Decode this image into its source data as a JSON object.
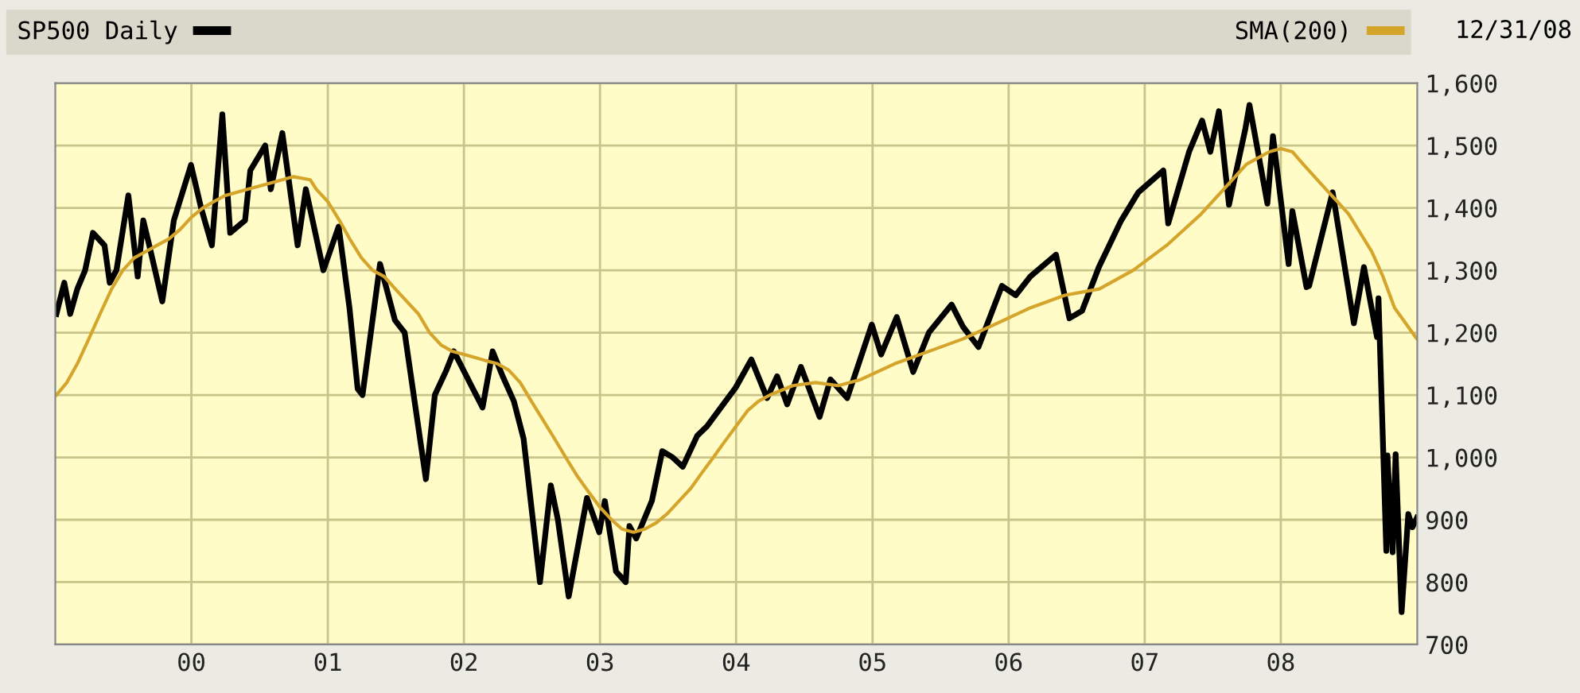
{
  "chart_data": {
    "type": "line",
    "annotations": [
      "12/31/08"
    ],
    "xlim": [
      "1999-01-01",
      "2009-01-01"
    ],
    "ylim": [
      700,
      1600
    ],
    "xticks": [
      {
        "value": "2000-01-01",
        "label": "00"
      },
      {
        "value": "2001-01-01",
        "label": "01"
      },
      {
        "value": "2002-01-01",
        "label": "02"
      },
      {
        "value": "2003-01-01",
        "label": "03"
      },
      {
        "value": "2004-01-01",
        "label": "04"
      },
      {
        "value": "2005-01-01",
        "label": "05"
      },
      {
        "value": "2006-01-01",
        "label": "06"
      },
      {
        "value": "2007-01-01",
        "label": "07"
      },
      {
        "value": "2008-01-01",
        "label": "08"
      }
    ],
    "yticks": [
      {
        "value": 700,
        "label": "700"
      },
      {
        "value": 800,
        "label": "800"
      },
      {
        "value": 900,
        "label": "900"
      },
      {
        "value": 1000,
        "label": "1,000"
      },
      {
        "value": 1100,
        "label": "1,100"
      },
      {
        "value": 1200,
        "label": "1,200"
      },
      {
        "value": 1300,
        "label": "1,300"
      },
      {
        "value": 1400,
        "label": "1,400"
      },
      {
        "value": 1500,
        "label": "1,500"
      },
      {
        "value": 1600,
        "label": "1,600"
      }
    ],
    "grid": true,
    "legend": "top",
    "marker": "none",
    "line_style": "solid",
    "series": [
      {
        "name": "SP500 Daily",
        "color": "#000000",
        "x": [
          "1999-01-04",
          "1999-01-25",
          "1999-02-10",
          "1999-03-01",
          "1999-03-22",
          "1999-04-12",
          "1999-05-13",
          "1999-05-27",
          "1999-06-14",
          "1999-07-16",
          "1999-08-10",
          "1999-08-25",
          "1999-09-10",
          "1999-10-15",
          "1999-11-15",
          "1999-12-31",
          "2000-01-27",
          "2000-02-25",
          "2000-03-24",
          "2000-04-14",
          "2000-05-24",
          "2000-06-07",
          "2000-07-17",
          "2000-08-01",
          "2000-09-01",
          "2000-10-12",
          "2000-11-03",
          "2000-12-20",
          "2001-01-30",
          "2001-02-28",
          "2001-03-22",
          "2001-04-04",
          "2001-05-21",
          "2001-06-30",
          "2001-07-26",
          "2001-09-21",
          "2001-10-15",
          "2001-11-15",
          "2001-12-05",
          "2002-01-25",
          "2002-02-20",
          "2002-03-19",
          "2002-04-15",
          "2002-05-15",
          "2002-06-10",
          "2002-07-24",
          "2002-08-22",
          "2002-09-10",
          "2002-10-09",
          "2002-11-27",
          "2002-12-30",
          "2003-01-14",
          "2003-02-13",
          "2003-03-11",
          "2003-03-21",
          "2003-04-08",
          "2003-05-20",
          "2003-06-17",
          "2003-07-15",
          "2003-08-11",
          "2003-09-19",
          "2003-10-15",
          "2003-12-31",
          "2004-02-11",
          "2004-03-24",
          "2004-04-20",
          "2004-05-17",
          "2004-06-23",
          "2004-08-12",
          "2004-09-10",
          "2004-10-25",
          "2004-12-30",
          "2005-01-24",
          "2005-03-07",
          "2005-04-20",
          "2005-06-01",
          "2005-08-01",
          "2005-08-31",
          "2005-10-12",
          "2005-12-14",
          "2006-01-20",
          "2006-02-28",
          "2006-05-08",
          "2006-06-13",
          "2006-07-17",
          "2006-08-31",
          "2006-10-30",
          "2006-12-15",
          "2007-02-20",
          "2007-03-05",
          "2007-04-30",
          "2007-06-04",
          "2007-06-26",
          "2007-07-19",
          "2007-08-15",
          "2007-09-28",
          "2007-10-09",
          "2007-11-26",
          "2007-12-11",
          "2008-01-22",
          "2008-02-01",
          "2008-03-10",
          "2008-03-17",
          "2008-05-19",
          "2008-07-15",
          "2008-08-11",
          "2008-09-15",
          "2008-09-19",
          "2008-10-10",
          "2008-10-13",
          "2008-10-27",
          "2008-11-04",
          "2008-11-20",
          "2008-12-08",
          "2008-12-19",
          "2008-12-31"
        ],
        "values": [
          1230,
          1280,
          1230,
          1270,
          1300,
          1360,
          1340,
          1280,
          1300,
          1420,
          1290,
          1380,
          1340,
          1250,
          1380,
          1469,
          1400,
          1340,
          1550,
          1360,
          1380,
          1460,
          1500,
          1430,
          1520,
          1340,
          1430,
          1300,
          1370,
          1240,
          1110,
          1100,
          1310,
          1220,
          1200,
          965,
          1100,
          1140,
          1170,
          1110,
          1080,
          1170,
          1130,
          1090,
          1030,
          800,
          955,
          900,
          777,
          935,
          880,
          930,
          817,
          800,
          890,
          870,
          930,
          1010,
          1000,
          985,
          1035,
          1050,
          1112,
          1157,
          1095,
          1130,
          1085,
          1145,
          1065,
          1125,
          1095,
          1213,
          1165,
          1225,
          1137,
          1200,
          1245,
          1210,
          1177,
          1275,
          1260,
          1290,
          1325,
          1223,
          1235,
          1305,
          1380,
          1425,
          1460,
          1375,
          1490,
          1540,
          1490,
          1555,
          1405,
          1527,
          1565,
          1407,
          1515,
          1310,
          1395,
          1273,
          1275,
          1425,
          1215,
          1305,
          1193,
          1255,
          850,
          1003,
          848,
          1005,
          752,
          909,
          888,
          903
        ]
      },
      {
        "name": "SMA(200)",
        "color": "#d4a52a",
        "x": [
          "1999-01-04",
          "1999-02-01",
          "1999-03-01",
          "1999-04-01",
          "1999-05-01",
          "1999-06-01",
          "1999-07-01",
          "1999-08-01",
          "1999-09-01",
          "1999-10-01",
          "1999-11-01",
          "1999-12-01",
          "2000-01-01",
          "2000-02-01",
          "2000-03-01",
          "2000-04-01",
          "2000-06-01",
          "2000-08-01",
          "2000-10-01",
          "2000-11-15",
          "2000-12-01",
          "2001-01-01",
          "2001-02-01",
          "2001-03-01",
          "2001-04-01",
          "2001-05-01",
          "2001-06-01",
          "2001-07-01",
          "2001-08-01",
          "2001-09-01",
          "2001-10-01",
          "2001-11-01",
          "2001-12-01",
          "2002-01-01",
          "2002-02-01",
          "2002-03-01",
          "2002-04-01",
          "2002-05-01",
          "2002-06-01",
          "2002-07-01",
          "2002-08-01",
          "2002-09-01",
          "2002-10-01",
          "2002-11-01",
          "2002-12-01",
          "2003-01-01",
          "2003-02-01",
          "2003-03-01",
          "2003-04-01",
          "2003-05-01",
          "2003-06-01",
          "2003-07-01",
          "2003-08-01",
          "2003-09-01",
          "2003-10-01",
          "2003-11-01",
          "2003-12-01",
          "2004-01-01",
          "2004-02-01",
          "2004-03-01",
          "2004-04-01",
          "2004-06-01",
          "2004-08-01",
          "2004-10-01",
          "2004-12-01",
          "2005-03-01",
          "2005-06-01",
          "2005-09-01",
          "2005-12-01",
          "2006-03-01",
          "2006-06-01",
          "2006-09-01",
          "2006-12-01",
          "2007-03-01",
          "2007-06-01",
          "2007-08-01",
          "2007-10-01",
          "2007-12-01",
          "2008-01-01",
          "2008-02-01",
          "2008-03-01",
          "2008-05-01",
          "2008-06-01",
          "2008-07-01",
          "2008-08-01",
          "2008-09-01",
          "2008-10-01",
          "2008-11-01",
          "2008-12-31"
        ],
        "values": [
          1100,
          1120,
          1150,
          1190,
          1230,
          1270,
          1300,
          1320,
          1330,
          1340,
          1350,
          1365,
          1385,
          1400,
          1410,
          1420,
          1430,
          1440,
          1450,
          1445,
          1430,
          1410,
          1380,
          1350,
          1320,
          1300,
          1290,
          1270,
          1250,
          1230,
          1200,
          1180,
          1170,
          1165,
          1160,
          1155,
          1150,
          1140,
          1120,
          1090,
          1060,
          1030,
          1000,
          970,
          945,
          920,
          900,
          885,
          880,
          885,
          895,
          910,
          930,
          950,
          975,
          1000,
          1025,
          1050,
          1075,
          1090,
          1100,
          1115,
          1120,
          1115,
          1125,
          1150,
          1170,
          1190,
          1215,
          1240,
          1260,
          1270,
          1300,
          1340,
          1390,
          1430,
          1470,
          1490,
          1495,
          1490,
          1470,
          1430,
          1410,
          1390,
          1360,
          1330,
          1290,
          1240,
          1190
        ]
      }
    ]
  }
}
